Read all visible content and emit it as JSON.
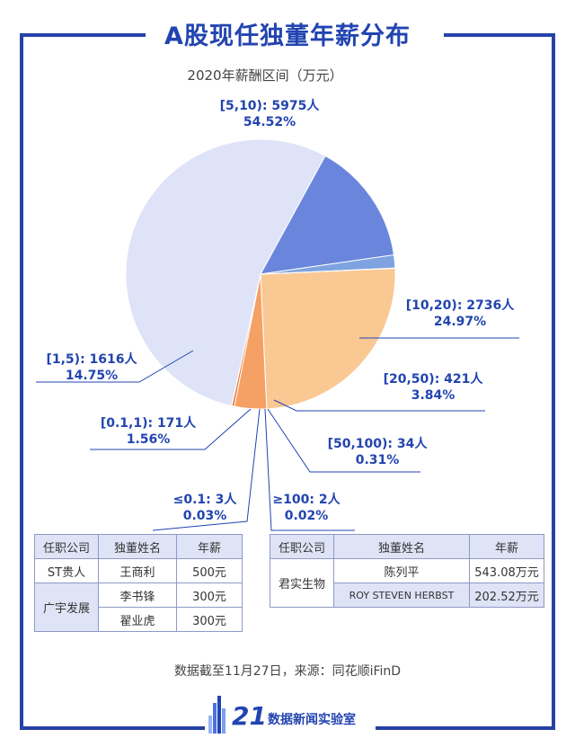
{
  "header": {
    "title": "A股现任独董年薪分布",
    "subtitle": "2020年薪酬区间（万元）"
  },
  "chart_data": {
    "type": "pie",
    "title": "A股现任独董年薪分布",
    "subtitle": "2020年薪酬区间（万元）",
    "slices": [
      {
        "name": "[5,10)",
        "count": 5975,
        "percent": 54.52,
        "label": "[5,10): 5975人",
        "pct_label": "54.52%",
        "color": "#dfe3f8"
      },
      {
        "name": "[10,20)",
        "count": 2736,
        "percent": 24.97,
        "label": "[10,20): 2736人",
        "pct_label": "24.97%",
        "color": "#fac893"
      },
      {
        "name": "[20,50)",
        "count": 421,
        "percent": 3.84,
        "label": "[20,50): 421人",
        "pct_label": "3.84%",
        "color": "#f5a064"
      },
      {
        "name": "[50,100)",
        "count": 34,
        "percent": 0.31,
        "label": "[50,100): 34人",
        "pct_label": "0.31%",
        "color": "#ee7a3a"
      },
      {
        "name": "≥100",
        "count": 2,
        "percent": 0.02,
        "label": "≥100: 2人",
        "pct_label": "0.02%",
        "color": "#e05a20"
      },
      {
        "name": "≤0.1",
        "count": 3,
        "percent": 0.03,
        "label": "≤0.1: 3人",
        "pct_label": "0.03%",
        "color": "#3a5bd0"
      },
      {
        "name": "[0.1,1)",
        "count": 171,
        "percent": 1.56,
        "label": "[0.1,1): 171人",
        "pct_label": "1.56%",
        "color": "#7fa3e0"
      },
      {
        "name": "[1,5)",
        "count": 1616,
        "percent": 14.75,
        "label": "[1,5): 1616人",
        "pct_label": "14.75%",
        "color": "#6a86dc"
      }
    ],
    "accent_color": "#2244b0"
  },
  "table_left": {
    "headers": [
      "任职公司",
      "独董姓名",
      "年薪"
    ],
    "rows": [
      {
        "company": "ST贵人",
        "name": "王商利",
        "salary": "500元"
      },
      {
        "company": "广宇发展",
        "name": "李书锋",
        "salary": "300元"
      },
      {
        "company": "",
        "name": "翟业虎",
        "salary": "300元"
      }
    ]
  },
  "table_right": {
    "headers": [
      "任职公司",
      "独董姓名",
      "年薪"
    ],
    "company": "君实生物",
    "rows": [
      {
        "name": "陈列平",
        "salary": "543.08万元"
      },
      {
        "name": "ROY STEVEN HERBST",
        "salary": "202.52万元"
      }
    ]
  },
  "footer": {
    "source": "数据截至11月27日，来源：同花顺iFinD",
    "logo_number": "21",
    "logo_text": "数据新闻实验室"
  }
}
